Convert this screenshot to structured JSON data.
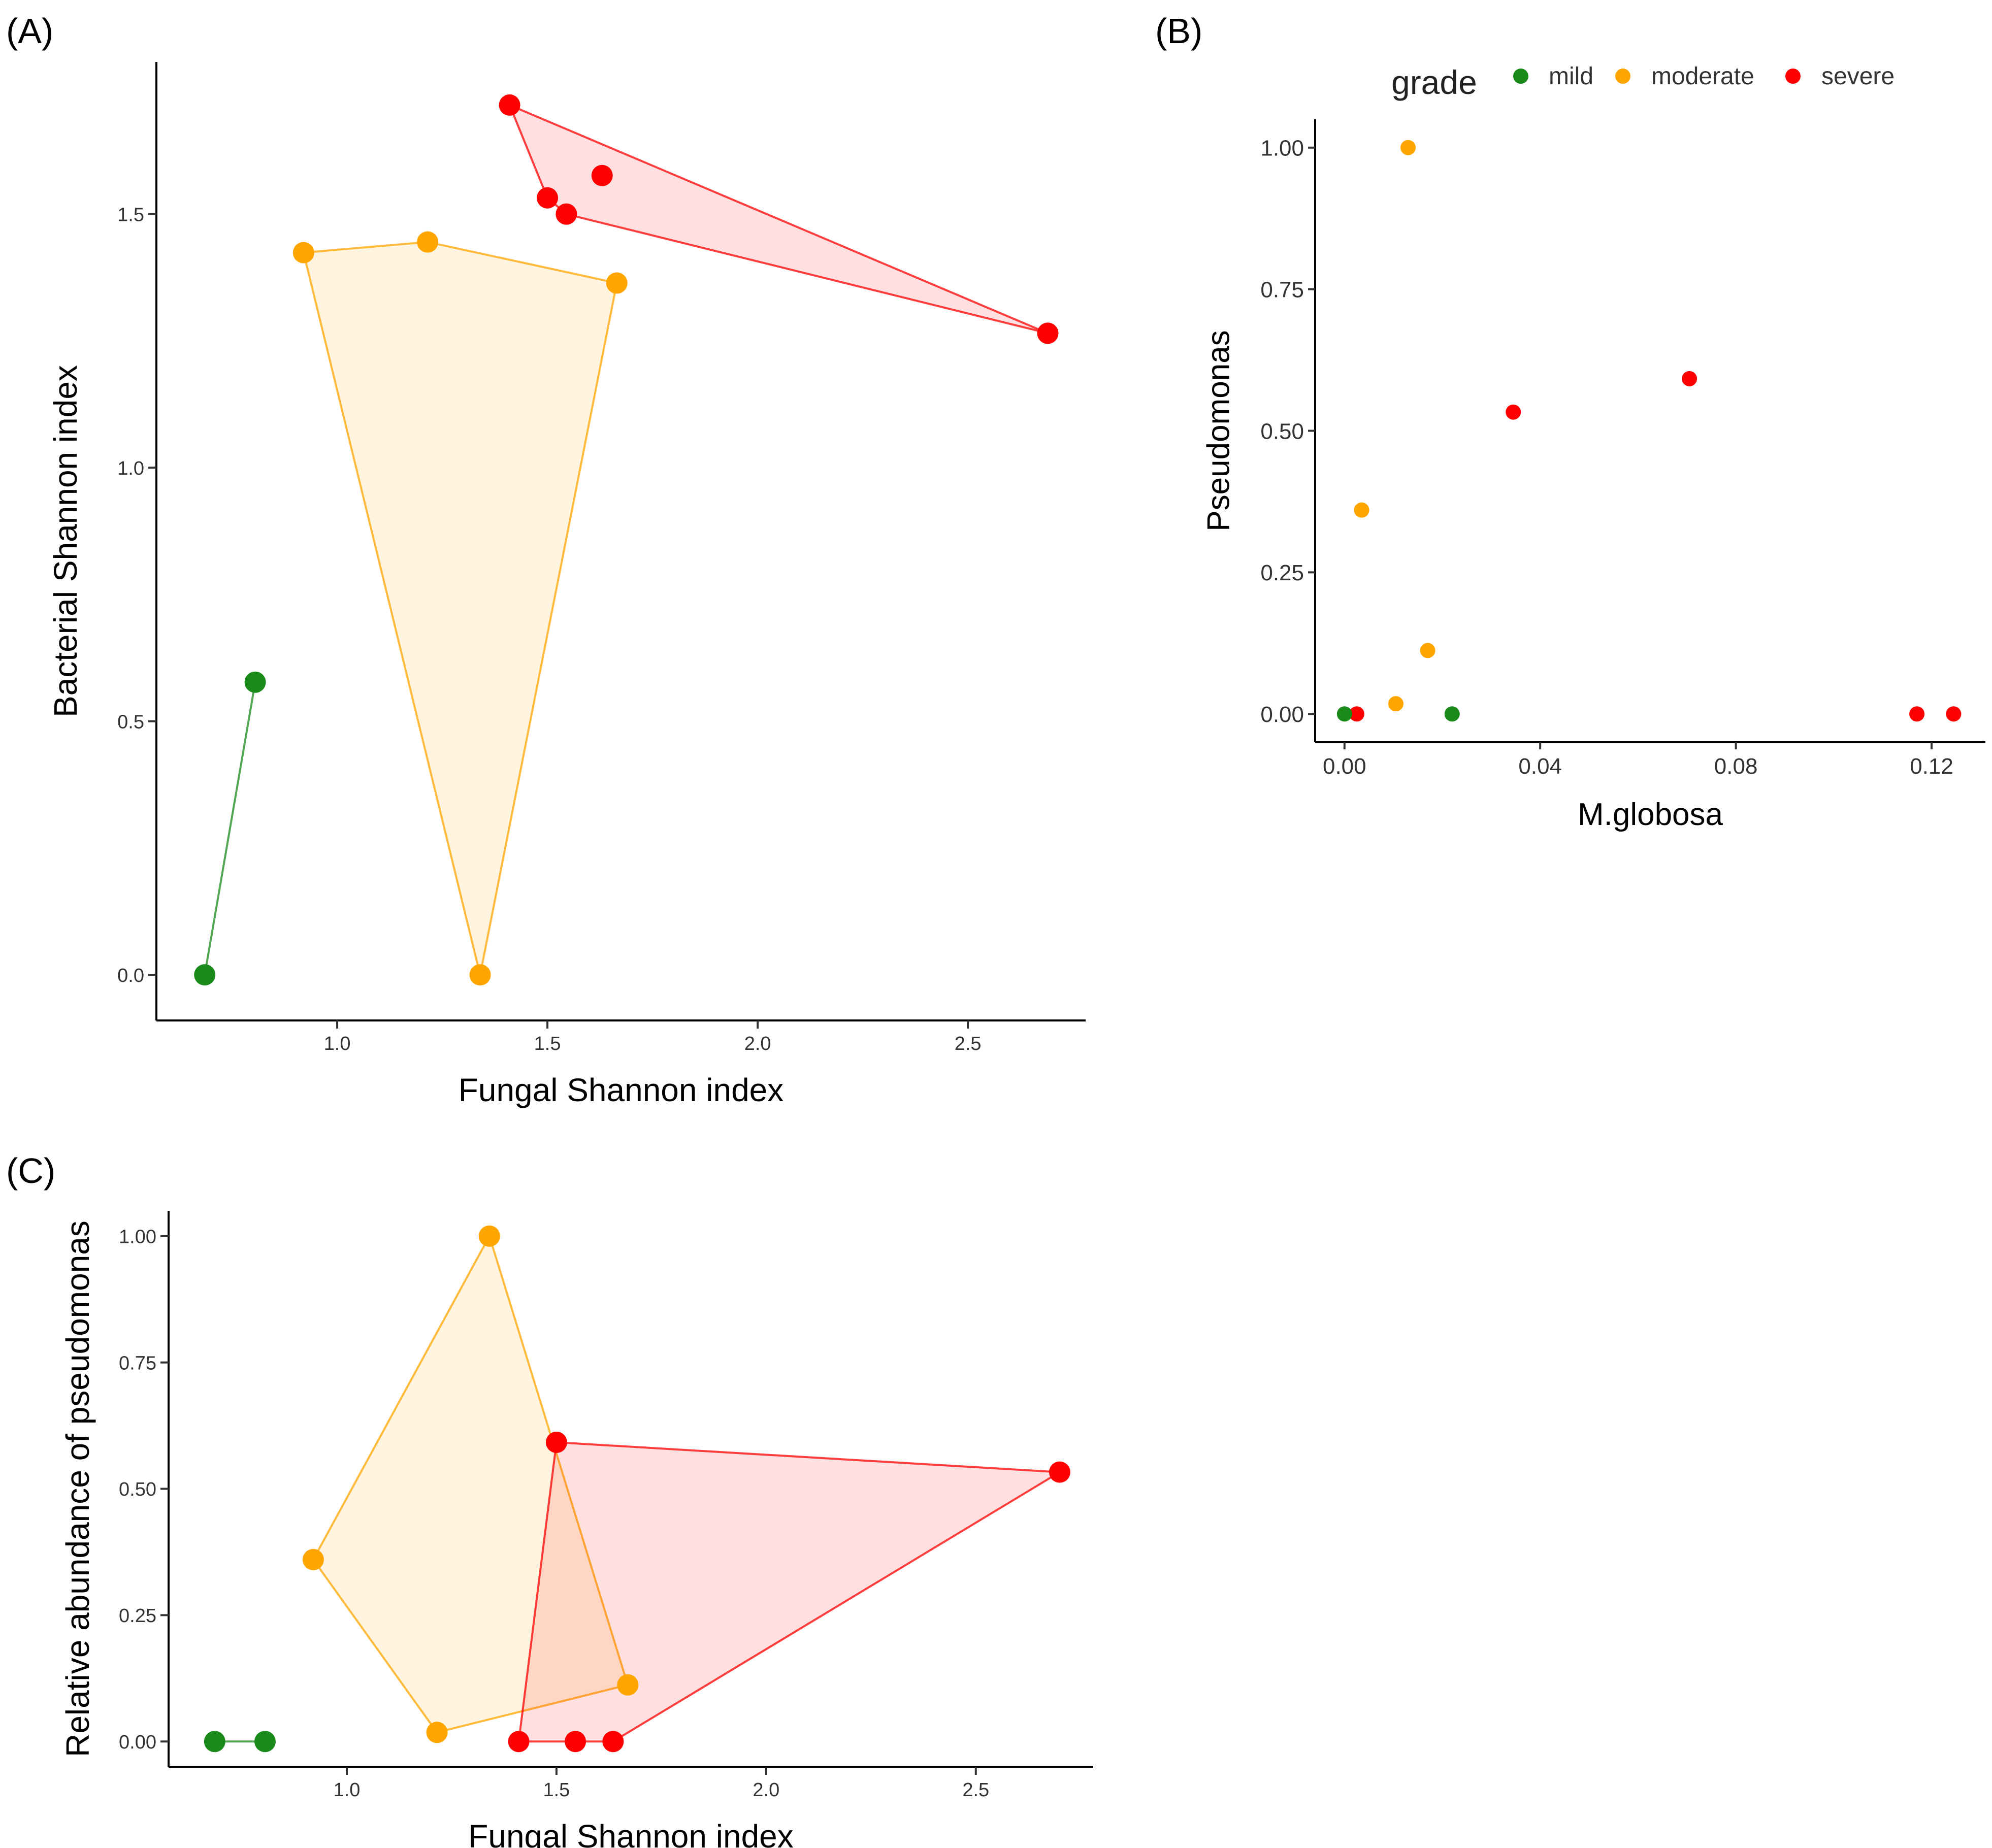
{
  "colors": {
    "mild": "#1a8a1a",
    "moderate": "#ffa500",
    "severe": "#ff0000"
  },
  "legend": {
    "title": "grade",
    "items": [
      {
        "key": "mild",
        "label": "mild"
      },
      {
        "key": "moderate",
        "label": "moderate"
      },
      {
        "key": "severe",
        "label": "severe"
      }
    ]
  },
  "chart_data": [
    {
      "id": "A",
      "panel_label": "(A)",
      "type": "scatter",
      "hulls": true,
      "xlabel": "Fungal Shannon index",
      "ylabel": "Bacterial Shannon index",
      "xlim": [
        0.57,
        2.78
      ],
      "ylim": [
        -0.09,
        1.8
      ],
      "xticks": [
        "1.0",
        "1.5",
        "2.0",
        "2.5"
      ],
      "yticks": [
        "0.0",
        "0.5",
        "1.0",
        "1.5"
      ],
      "grid": false,
      "series": [
        {
          "name": "mild",
          "points": [
            [
              0.685,
              0.0
            ],
            [
              0.805,
              0.577
            ]
          ]
        },
        {
          "name": "moderate",
          "points": [
            [
              0.92,
              1.424
            ],
            [
              1.215,
              1.445
            ],
            [
              1.665,
              1.364
            ],
            [
              1.34,
              0.0
            ]
          ]
        },
        {
          "name": "severe",
          "points": [
            [
              1.41,
              1.715
            ],
            [
              1.5,
              1.532
            ],
            [
              1.545,
              1.5
            ],
            [
              1.63,
              1.576
            ],
            [
              2.69,
              1.265
            ]
          ]
        }
      ]
    },
    {
      "id": "B",
      "panel_label": "(B)",
      "type": "scatter",
      "hulls": false,
      "xlabel": "M.globosa",
      "ylabel": "Pseudomonas",
      "xlim": [
        -0.006,
        0.131
      ],
      "ylim": [
        -0.05,
        1.05
      ],
      "xticks": [
        "0.00",
        "0.04",
        "0.08",
        "0.12"
      ],
      "yticks": [
        "0.00",
        "0.25",
        "0.50",
        "0.75",
        "1.00"
      ],
      "grid": false,
      "legend_position": "top",
      "series": [
        {
          "name": "mild",
          "points": [
            [
              0.0,
              0.0
            ],
            [
              0.022,
              0.0
            ]
          ]
        },
        {
          "name": "moderate",
          "points": [
            [
              0.013,
              1.0
            ],
            [
              0.0035,
              0.36
            ],
            [
              0.017,
              0.112
            ],
            [
              0.0105,
              0.018
            ]
          ]
        },
        {
          "name": "severe",
          "points": [
            [
              0.0025,
              0.0
            ],
            [
              0.0345,
              0.533
            ],
            [
              0.0705,
              0.592
            ],
            [
              0.117,
              0.0
            ],
            [
              0.1245,
              0.0
            ]
          ]
        }
      ]
    },
    {
      "id": "C",
      "panel_label": "(C)",
      "type": "scatter",
      "hulls": true,
      "xlabel": "Fungal Shannon index",
      "ylabel": "Relative abundance of pseudomonas",
      "xlim": [
        0.575,
        2.78
      ],
      "ylim": [
        -0.05,
        1.05
      ],
      "xticks": [
        "1.0",
        "1.5",
        "2.0",
        "2.5"
      ],
      "yticks": [
        "0.00",
        "0.25",
        "0.50",
        "0.75",
        "1.00"
      ],
      "grid": false,
      "series": [
        {
          "name": "mild",
          "points": [
            [
              0.685,
              0.0
            ],
            [
              0.805,
              0.0
            ]
          ]
        },
        {
          "name": "moderate",
          "points": [
            [
              1.34,
              1.0
            ],
            [
              0.92,
              0.36
            ],
            [
              1.215,
              0.018
            ],
            [
              1.67,
              0.112
            ]
          ]
        },
        {
          "name": "severe",
          "points": [
            [
              1.5,
              0.592
            ],
            [
              2.7,
              0.533
            ],
            [
              1.41,
              0.0
            ],
            [
              1.545,
              0.0
            ],
            [
              1.635,
              0.0
            ]
          ]
        }
      ]
    }
  ]
}
